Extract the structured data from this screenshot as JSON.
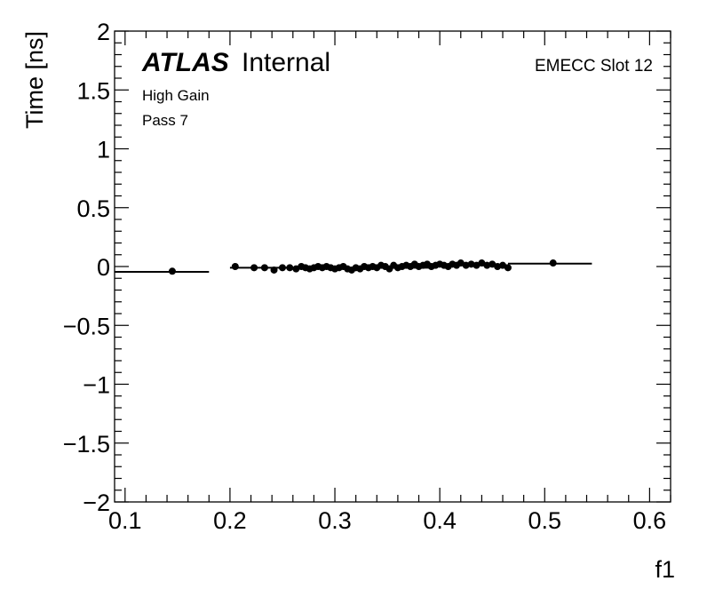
{
  "chart_data": {
    "type": "scatter",
    "xlabel": "f1",
    "ylabel": "Time [ns]",
    "xlim": [
      0.09,
      0.62
    ],
    "ylim": [
      -2,
      2
    ],
    "x_ticks": [
      "0.1",
      "0.2",
      "0.3",
      "0.4",
      "0.5",
      "0.6"
    ],
    "x_tick_values": [
      0.1,
      0.2,
      0.3,
      0.4,
      0.5,
      0.6
    ],
    "y_ticks": [
      "2",
      "1.5",
      "1",
      "0.5",
      "0",
      "−0.5",
      "−1",
      "−1.5",
      "−2"
    ],
    "y_tick_values": [
      2,
      1.5,
      1,
      0.5,
      0,
      -0.5,
      -1,
      -1.5,
      -2
    ],
    "grid": false,
    "annotations": {
      "atlas_label": "ATLAS",
      "atlas_suffix": "Internal",
      "gain": "High Gain",
      "pass": "Pass 7",
      "slot": "EMECC Slot 12"
    },
    "bins": [
      {
        "x": 0.135,
        "xerr": 0.045,
        "y": -0.045
      },
      {
        "x": 0.295,
        "xerr": 0.095,
        "y": -0.01
      },
      {
        "x": 0.43,
        "xerr": 0.035,
        "y": 0.01
      },
      {
        "x": 0.505,
        "xerr": 0.04,
        "y": 0.025
      }
    ],
    "points": [
      {
        "x": 0.145,
        "y": -0.04
      },
      {
        "x": 0.205,
        "y": 0.0
      },
      {
        "x": 0.223,
        "y": -0.01
      },
      {
        "x": 0.233,
        "y": -0.01
      },
      {
        "x": 0.242,
        "y": -0.03
      },
      {
        "x": 0.25,
        "y": -0.01
      },
      {
        "x": 0.257,
        "y": -0.01
      },
      {
        "x": 0.263,
        "y": -0.02
      },
      {
        "x": 0.268,
        "y": 0.0
      },
      {
        "x": 0.272,
        "y": -0.01
      },
      {
        "x": 0.276,
        "y": -0.02
      },
      {
        "x": 0.28,
        "y": -0.01
      },
      {
        "x": 0.284,
        "y": 0.0
      },
      {
        "x": 0.288,
        "y": -0.01
      },
      {
        "x": 0.292,
        "y": 0.0
      },
      {
        "x": 0.296,
        "y": -0.01
      },
      {
        "x": 0.3,
        "y": -0.02
      },
      {
        "x": 0.304,
        "y": -0.01
      },
      {
        "x": 0.308,
        "y": 0.0
      },
      {
        "x": 0.312,
        "y": -0.02
      },
      {
        "x": 0.316,
        "y": -0.03
      },
      {
        "x": 0.32,
        "y": -0.01
      },
      {
        "x": 0.324,
        "y": -0.02
      },
      {
        "x": 0.328,
        "y": 0.0
      },
      {
        "x": 0.332,
        "y": -0.01
      },
      {
        "x": 0.336,
        "y": 0.0
      },
      {
        "x": 0.34,
        "y": -0.01
      },
      {
        "x": 0.344,
        "y": 0.01
      },
      {
        "x": 0.348,
        "y": 0.0
      },
      {
        "x": 0.352,
        "y": -0.02
      },
      {
        "x": 0.356,
        "y": 0.01
      },
      {
        "x": 0.36,
        "y": -0.01
      },
      {
        "x": 0.364,
        "y": 0.0
      },
      {
        "x": 0.368,
        "y": 0.01
      },
      {
        "x": 0.372,
        "y": 0.0
      },
      {
        "x": 0.376,
        "y": 0.02
      },
      {
        "x": 0.38,
        "y": 0.0
      },
      {
        "x": 0.384,
        "y": 0.01
      },
      {
        "x": 0.388,
        "y": 0.02
      },
      {
        "x": 0.392,
        "y": 0.0
      },
      {
        "x": 0.396,
        "y": 0.01
      },
      {
        "x": 0.4,
        "y": 0.02
      },
      {
        "x": 0.404,
        "y": 0.01
      },
      {
        "x": 0.408,
        "y": 0.0
      },
      {
        "x": 0.412,
        "y": 0.02
      },
      {
        "x": 0.416,
        "y": 0.01
      },
      {
        "x": 0.42,
        "y": 0.03
      },
      {
        "x": 0.425,
        "y": 0.01
      },
      {
        "x": 0.43,
        "y": 0.02
      },
      {
        "x": 0.435,
        "y": 0.01
      },
      {
        "x": 0.44,
        "y": 0.03
      },
      {
        "x": 0.445,
        "y": 0.01
      },
      {
        "x": 0.45,
        "y": 0.02
      },
      {
        "x": 0.455,
        "y": 0.0
      },
      {
        "x": 0.46,
        "y": 0.01
      },
      {
        "x": 0.465,
        "y": -0.01
      },
      {
        "x": 0.508,
        "y": 0.03
      }
    ]
  }
}
